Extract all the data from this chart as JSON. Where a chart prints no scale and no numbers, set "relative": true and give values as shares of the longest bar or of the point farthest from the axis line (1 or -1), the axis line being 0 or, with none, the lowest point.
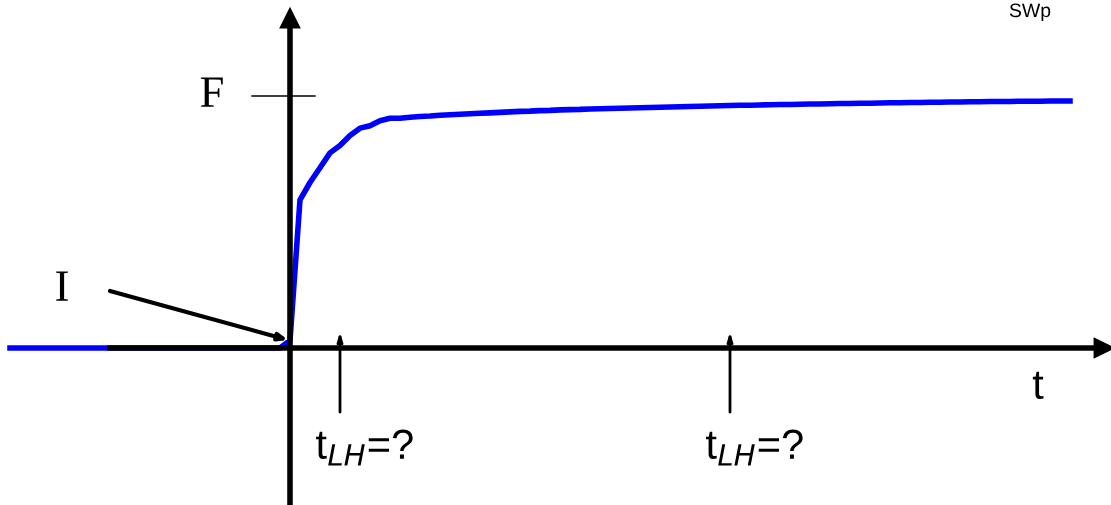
{
  "chart_data": {
    "type": "line",
    "relative": true,
    "xlabel": "t",
    "marker": "none",
    "line_style": "solid",
    "annotations": [
      "F",
      "I",
      "t$_{LH}$=?",
      "t$_{LH}$=?",
      "SWp"
    ],
    "categories": [
      null,
      null,
      null,
      null,
      null,
      null,
      null,
      null,
      null,
      null,
      null,
      null,
      null,
      null,
      null,
      null,
      null,
      null,
      null,
      null,
      null,
      null,
      null,
      null,
      null,
      null,
      null,
      null,
      null,
      null,
      null,
      null,
      null,
      null,
      null,
      null,
      null,
      null,
      null,
      null,
      null,
      null,
      null,
      null,
      null,
      null,
      null,
      null,
      null,
      null,
      null,
      null,
      null,
      null,
      null,
      null,
      null,
      null,
      null,
      null,
      null,
      null,
      null,
      null,
      null,
      null,
      null,
      null,
      null,
      null,
      null,
      null,
      null,
      null,
      null,
      null,
      null,
      null,
      null,
      null,
      null,
      null,
      null,
      null,
      null,
      null,
      null,
      null,
      null,
      null,
      null,
      null,
      null,
      null,
      null,
      null,
      null,
      null,
      null,
      null,
      null,
      null,
      null,
      null,
      null,
      null,
      null
    ],
    "series": [
      {
        "color": "#0000ff",
        "values": [
          0,
          0,
          0,
          0,
          0,
          0,
          0,
          0,
          0,
          0,
          0,
          0,
          0,
          0,
          0,
          0,
          0,
          0,
          0,
          0,
          0,
          0,
          0,
          0,
          0,
          0,
          0,
          0,
          0.03,
          0.6,
          0.67,
          0.73,
          0.79,
          0.82,
          0.86,
          0.89,
          0.9,
          0.92,
          0.93,
          0.93,
          0.934,
          0.937,
          0.939,
          0.942,
          0.944,
          0.946,
          0.948,
          0.95,
          0.952,
          0.954,
          0.956,
          0.958,
          0.959,
          0.961,
          0.962,
          0.964,
          0.965,
          0.966,
          0.968,
          0.969,
          0.97,
          0.971,
          0.972,
          0.973,
          0.974,
          0.975,
          0.976,
          0.977,
          0.978,
          0.979,
          0.98,
          0.981,
          0.982,
          0.983,
          0.983,
          0.984,
          0.985,
          0.986,
          0.986,
          0.987,
          0.988,
          0.988,
          0.989,
          0.99,
          0.99,
          0.991,
          0.991,
          0.992,
          0.993,
          0.993,
          0.994,
          0.994,
          0.995,
          0.995,
          0.996,
          0.996,
          0.997,
          0.997,
          0.998,
          0.998,
          0.998,
          0.999,
          0.999,
          0.999,
          1.0,
          1.0,
          1.0
        ]
      }
    ]
  }
}
